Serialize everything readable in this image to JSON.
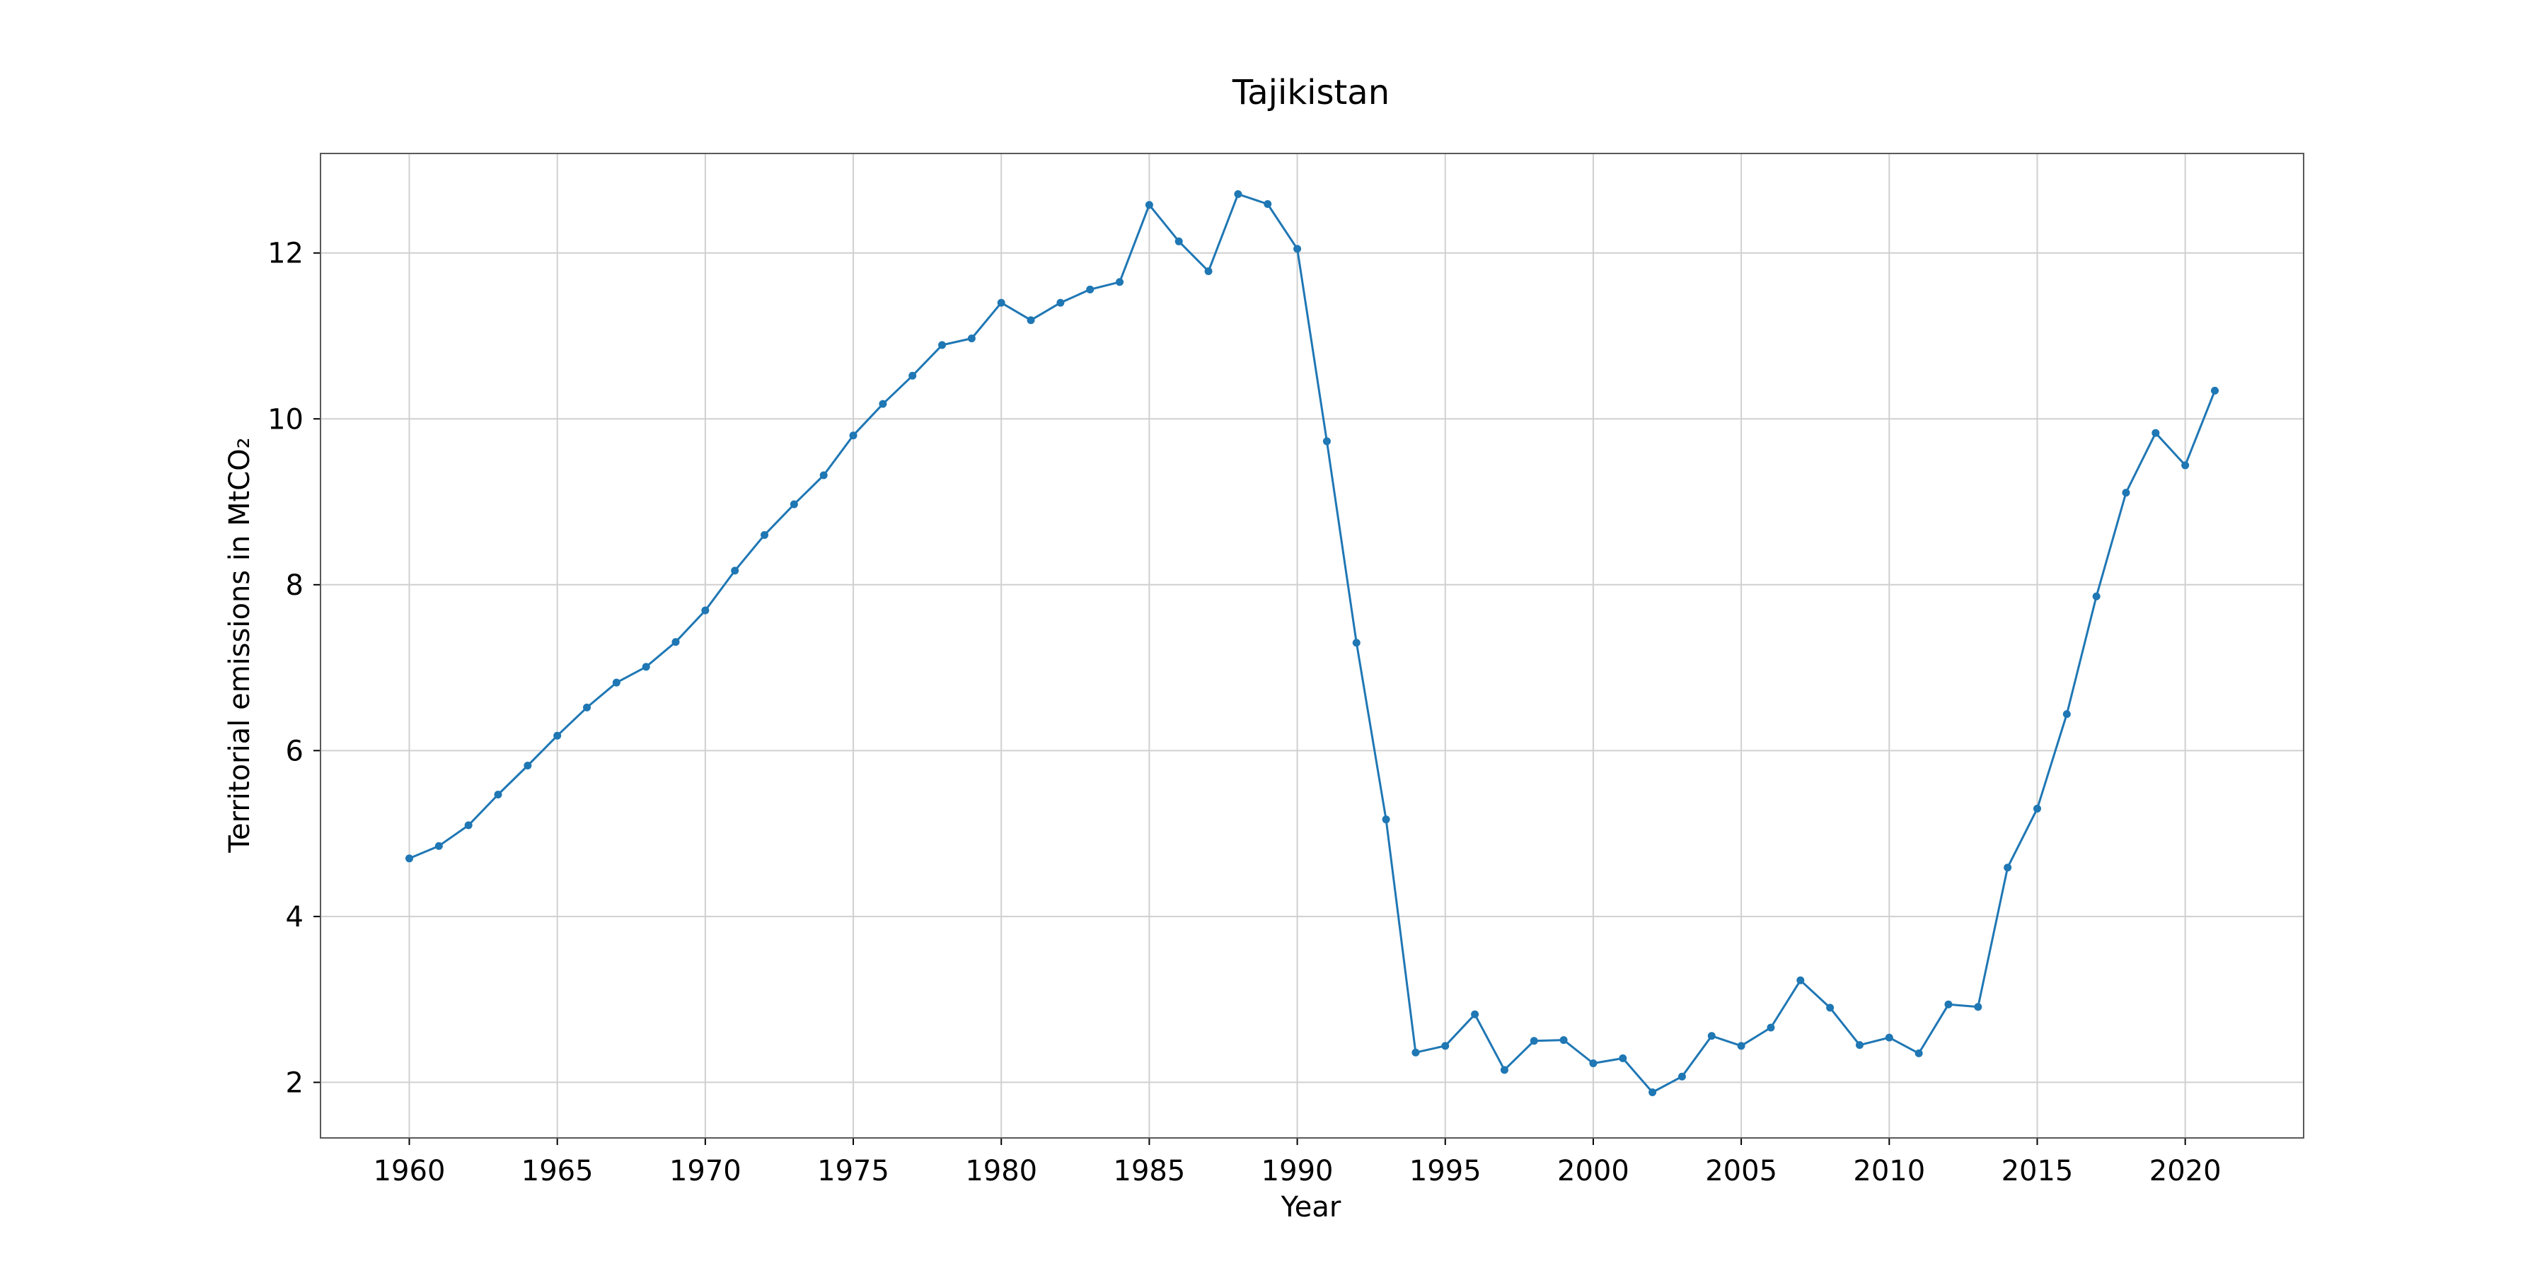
{
  "chart_data": {
    "type": "line",
    "title": "Tajikistan",
    "xlabel": "Year",
    "ylabel": "Territorial emissions in MtCO₂",
    "xlim": [
      1957,
      2024
    ],
    "ylim": [
      1.33,
      13.2
    ],
    "xticks": [
      1960,
      1965,
      1970,
      1975,
      1980,
      1985,
      1990,
      1995,
      2000,
      2005,
      2010,
      2015,
      2020
    ],
    "yticks": [
      2,
      4,
      6,
      8,
      10,
      12
    ],
    "grid": true,
    "legend": "none",
    "colors": {
      "series": "#1f77b4"
    },
    "series": [
      {
        "x": [
          1960,
          1961,
          1962,
          1963,
          1964,
          1965,
          1966,
          1967,
          1968,
          1969,
          1970,
          1971,
          1972,
          1973,
          1974,
          1975,
          1976,
          1977,
          1978,
          1979,
          1980,
          1981,
          1982,
          1983,
          1984,
          1985,
          1986,
          1987,
          1988,
          1989,
          1990,
          1991,
          1992,
          1993,
          1994,
          1995,
          1996,
          1997,
          1998,
          1999,
          2000,
          2001,
          2002,
          2003,
          2004,
          2005,
          2006,
          2007,
          2008,
          2009,
          2010,
          2011,
          2012,
          2013,
          2014,
          2015,
          2016,
          2017,
          2018,
          2019,
          2020,
          2021
        ],
        "values": [
          4.7,
          4.85,
          5.1,
          5.47,
          5.82,
          6.18,
          6.52,
          6.82,
          7.01,
          7.31,
          7.69,
          8.17,
          8.6,
          8.97,
          9.32,
          9.8,
          10.18,
          10.52,
          10.89,
          10.97,
          11.4,
          11.19,
          11.4,
          11.56,
          11.65,
          12.58,
          12.14,
          11.78,
          12.71,
          12.59,
          12.05,
          9.73,
          7.3,
          5.17,
          2.36,
          2.44,
          2.82,
          2.15,
          2.5,
          2.51,
          2.23,
          2.29,
          1.88,
          2.07,
          2.56,
          2.44,
          2.66,
          3.23,
          2.9,
          2.45,
          2.54,
          2.35,
          2.94,
          2.91,
          4.59,
          5.3,
          6.44,
          7.86,
          9.11,
          9.83,
          9.44,
          10.34
        ]
      }
    ]
  }
}
